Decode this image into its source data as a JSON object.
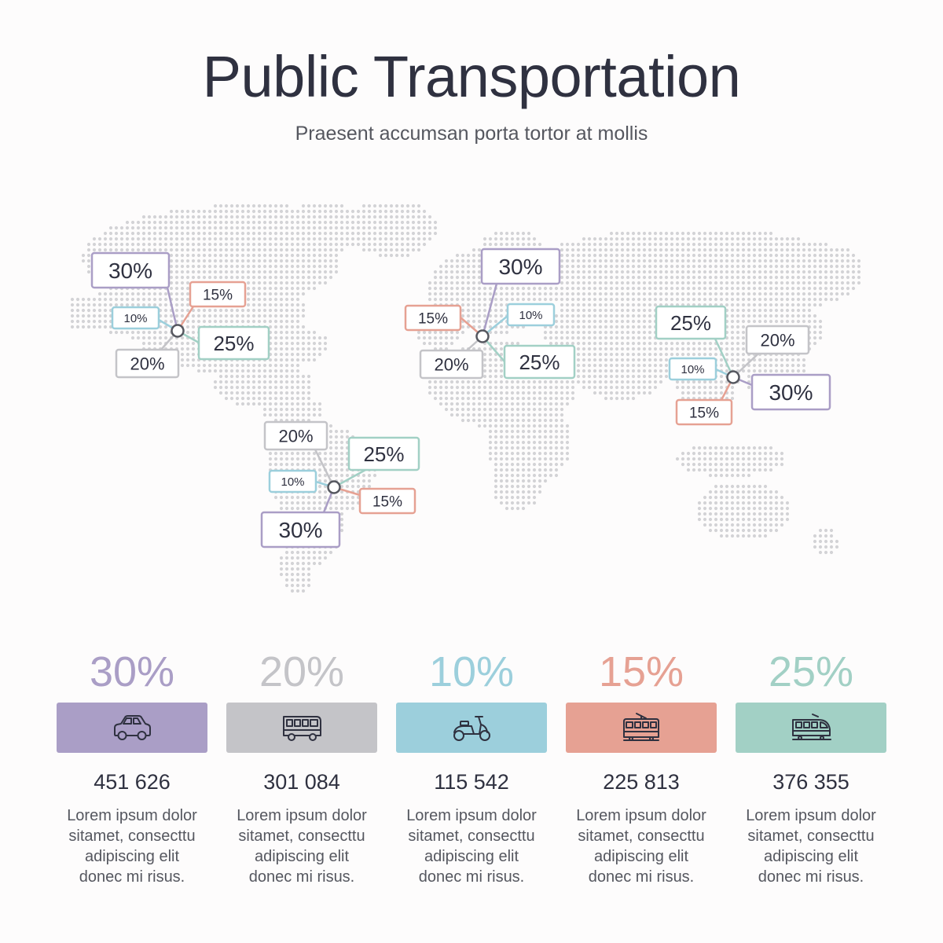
{
  "title": "Public Transportation",
  "subtitle": "Praesent accumsan porta tortor at mollis",
  "colors": {
    "purple": "#aa9ec6",
    "gray": "#c4c4c8",
    "blue": "#9ccfdc",
    "red": "#e6a193",
    "green": "#a2d0c5",
    "map_dot": "#d3d3d6"
  },
  "regions": [
    {
      "name": "North America",
      "labels": [
        {
          "text": "30%",
          "color": "purple"
        },
        {
          "text": "15%",
          "color": "red"
        },
        {
          "text": "10%",
          "color": "blue"
        },
        {
          "text": "25%",
          "color": "green"
        },
        {
          "text": "20%",
          "color": "gray"
        }
      ]
    },
    {
      "name": "South America",
      "labels": [
        {
          "text": "20%",
          "color": "gray"
        },
        {
          "text": "25%",
          "color": "green"
        },
        {
          "text": "10%",
          "color": "blue"
        },
        {
          "text": "15%",
          "color": "red"
        },
        {
          "text": "30%",
          "color": "purple"
        }
      ]
    },
    {
      "name": "Europe",
      "labels": [
        {
          "text": "30%",
          "color": "purple"
        },
        {
          "text": "15%",
          "color": "red"
        },
        {
          "text": "10%",
          "color": "blue"
        },
        {
          "text": "20%",
          "color": "gray"
        },
        {
          "text": "25%",
          "color": "green"
        }
      ]
    },
    {
      "name": "Asia",
      "labels": [
        {
          "text": "25%",
          "color": "green"
        },
        {
          "text": "20%",
          "color": "gray"
        },
        {
          "text": "10%",
          "color": "blue"
        },
        {
          "text": "30%",
          "color": "purple"
        },
        {
          "text": "15%",
          "color": "red"
        }
      ]
    }
  ],
  "categories": [
    {
      "percent": "30%",
      "color": "#aa9ec6",
      "icon": "car-icon",
      "count": "451 626",
      "desc": [
        "Lorem ipsum dolor",
        "sitamet, consecttu",
        "adipiscing elit",
        "donec mi risus."
      ]
    },
    {
      "percent": "20%",
      "color": "#c4c4c8",
      "icon": "bus-icon",
      "count": "301 084",
      "desc": [
        "Lorem ipsum dolor",
        "sitamet, consecttu",
        "adipiscing elit",
        "donec mi risus."
      ]
    },
    {
      "percent": "10%",
      "color": "#9ccfdc",
      "icon": "scooter-icon",
      "count": "115 542",
      "desc": [
        "Lorem ipsum dolor",
        "sitamet, consecttu",
        "adipiscing elit",
        "donec mi risus."
      ]
    },
    {
      "percent": "15%",
      "color": "#e6a193",
      "icon": "tram-icon",
      "count": "225 813",
      "desc": [
        "Lorem ipsum dolor",
        "sitamet, consecttu",
        "adipiscing elit",
        "donec mi risus."
      ]
    },
    {
      "percent": "25%",
      "color": "#a2d0c5",
      "icon": "train-icon",
      "count": "376 355",
      "desc": [
        "Lorem ipsum dolor",
        "sitamet, consecttu",
        "adipiscing elit",
        "donec mi risus."
      ]
    }
  ]
}
